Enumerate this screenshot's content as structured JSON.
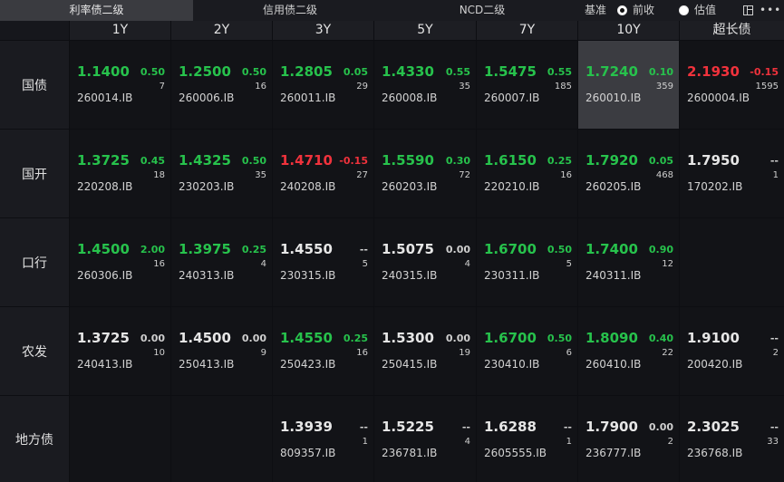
{
  "tabs": [
    {
      "label": "利率债二级",
      "active": true
    },
    {
      "label": "信用债二级",
      "active": false
    },
    {
      "label": "NCD二级",
      "active": false
    }
  ],
  "controls": {
    "base_label": "基准",
    "options": [
      {
        "label": "前收",
        "selected": true
      },
      {
        "label": "估值",
        "selected": false
      }
    ],
    "layout_icon": "layout-icon",
    "more_label": "•••"
  },
  "columns": [
    "1Y",
    "2Y",
    "3Y",
    "5Y",
    "7Y",
    "10Y",
    "超长债"
  ],
  "colors": {
    "up": "#27c24c",
    "down": "#f0323c",
    "neutral": "#e6e6e6"
  },
  "rows": [
    {
      "label": "国债",
      "cells": [
        {
          "yield": "1.1400",
          "change": "0.50",
          "count": "7",
          "code": "260014.IB",
          "dir": "up"
        },
        {
          "yield": "1.2500",
          "change": "0.50",
          "count": "16",
          "code": "260006.IB",
          "dir": "up"
        },
        {
          "yield": "1.2805",
          "change": "0.05",
          "count": "29",
          "code": "260011.IB",
          "dir": "up"
        },
        {
          "yield": "1.4330",
          "change": "0.55",
          "count": "35",
          "code": "260008.IB",
          "dir": "up"
        },
        {
          "yield": "1.5475",
          "change": "0.55",
          "count": "185",
          "code": "260007.IB",
          "dir": "up"
        },
        {
          "yield": "1.7240",
          "change": "0.10",
          "count": "359",
          "code": "260010.IB",
          "dir": "up",
          "highlight": true
        },
        {
          "yield": "2.1930",
          "change": "-0.15",
          "count": "1595",
          "code": "2600004.IB",
          "dir": "down"
        }
      ]
    },
    {
      "label": "国开",
      "cells": [
        {
          "yield": "1.3725",
          "change": "0.45",
          "count": "18",
          "code": "220208.IB",
          "dir": "up"
        },
        {
          "yield": "1.4325",
          "change": "0.50",
          "count": "35",
          "code": "230203.IB",
          "dir": "up"
        },
        {
          "yield": "1.4710",
          "change": "-0.15",
          "count": "27",
          "code": "240208.IB",
          "dir": "down"
        },
        {
          "yield": "1.5590",
          "change": "0.30",
          "count": "72",
          "code": "260203.IB",
          "dir": "up"
        },
        {
          "yield": "1.6150",
          "change": "0.25",
          "count": "16",
          "code": "220210.IB",
          "dir": "up"
        },
        {
          "yield": "1.7920",
          "change": "0.05",
          "count": "468",
          "code": "260205.IB",
          "dir": "up"
        },
        {
          "yield": "1.7950",
          "change": "--",
          "count": "1",
          "code": "170202.IB",
          "dir": "flat"
        }
      ]
    },
    {
      "label": "口行",
      "cells": [
        {
          "yield": "1.4500",
          "change": "2.00",
          "count": "16",
          "code": "260306.IB",
          "dir": "up"
        },
        {
          "yield": "1.3975",
          "change": "0.25",
          "count": "4",
          "code": "240313.IB",
          "dir": "up"
        },
        {
          "yield": "1.4550",
          "change": "--",
          "count": "5",
          "code": "230315.IB",
          "dir": "flat"
        },
        {
          "yield": "1.5075",
          "change": "0.00",
          "count": "4",
          "code": "240315.IB",
          "dir": "flat"
        },
        {
          "yield": "1.6700",
          "change": "0.50",
          "count": "5",
          "code": "230311.IB",
          "dir": "up"
        },
        {
          "yield": "1.7400",
          "change": "0.90",
          "count": "12",
          "code": "240311.IB",
          "dir": "up"
        },
        null
      ]
    },
    {
      "label": "农发",
      "cells": [
        {
          "yield": "1.3725",
          "change": "0.00",
          "count": "10",
          "code": "240413.IB",
          "dir": "flat"
        },
        {
          "yield": "1.4500",
          "change": "0.00",
          "count": "9",
          "code": "250413.IB",
          "dir": "flat"
        },
        {
          "yield": "1.4550",
          "change": "0.25",
          "count": "16",
          "code": "250423.IB",
          "dir": "up"
        },
        {
          "yield": "1.5300",
          "change": "0.00",
          "count": "19",
          "code": "250415.IB",
          "dir": "flat"
        },
        {
          "yield": "1.6700",
          "change": "0.50",
          "count": "6",
          "code": "230410.IB",
          "dir": "up"
        },
        {
          "yield": "1.8090",
          "change": "0.40",
          "count": "22",
          "code": "260410.IB",
          "dir": "up"
        },
        {
          "yield": "1.9100",
          "change": "--",
          "count": "2",
          "code": "200420.IB",
          "dir": "flat"
        }
      ]
    },
    {
      "label": "地方债",
      "cells": [
        null,
        null,
        {
          "yield": "1.3939",
          "change": "--",
          "count": "1",
          "code": "809357.IB",
          "dir": "flat"
        },
        {
          "yield": "1.5225",
          "change": "--",
          "count": "4",
          "code": "236781.IB",
          "dir": "flat"
        },
        {
          "yield": "1.6288",
          "change": "--",
          "count": "1",
          "code": "2605555.IB",
          "dir": "flat"
        },
        {
          "yield": "1.7900",
          "change": "0.00",
          "count": "2",
          "code": "236777.IB",
          "dir": "flat"
        },
        {
          "yield": "2.3025",
          "change": "--",
          "count": "33",
          "code": "236768.IB",
          "dir": "flat"
        }
      ]
    }
  ]
}
